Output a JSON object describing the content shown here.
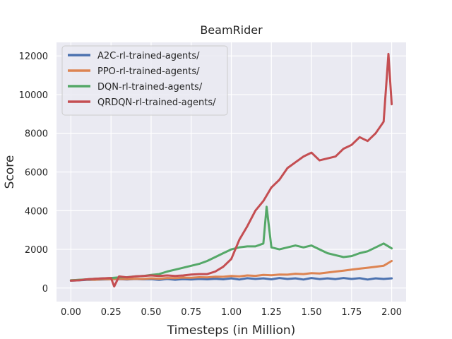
{
  "chart_data": {
    "type": "line",
    "title": "BeamRider",
    "xlabel": "Timesteps (in Million)",
    "ylabel": "Score",
    "xlim": [
      -0.09,
      2.09
    ],
    "ylim": [
      -700,
      12700
    ],
    "xticks": [
      0.0,
      0.25,
      0.5,
      0.75,
      1.0,
      1.25,
      1.5,
      1.75,
      2.0
    ],
    "xtick_labels": [
      "0.00",
      "0.25",
      "0.50",
      "0.75",
      "1.00",
      "1.25",
      "1.50",
      "1.75",
      "2.00"
    ],
    "yticks": [
      0,
      2000,
      4000,
      6000,
      8000,
      10000,
      12000
    ],
    "ytick_labels": [
      "0",
      "2000",
      "4000",
      "6000",
      "8000",
      "10000",
      "12000"
    ],
    "grid": true,
    "background": "#eaeaf2",
    "legend_position": "top-left",
    "series": [
      {
        "name": "A2C-rl-trained-agents/",
        "color": "#4c72b0",
        "points": [
          [
            0.0,
            380
          ],
          [
            0.05,
            400
          ],
          [
            0.1,
            420
          ],
          [
            0.15,
            430
          ],
          [
            0.2,
            440
          ],
          [
            0.25,
            450
          ],
          [
            0.3,
            460
          ],
          [
            0.35,
            440
          ],
          [
            0.4,
            470
          ],
          [
            0.45,
            450
          ],
          [
            0.5,
            460
          ],
          [
            0.55,
            420
          ],
          [
            0.6,
            470
          ],
          [
            0.65,
            430
          ],
          [
            0.7,
            460
          ],
          [
            0.75,
            440
          ],
          [
            0.8,
            470
          ],
          [
            0.85,
            450
          ],
          [
            0.9,
            480
          ],
          [
            0.95,
            450
          ],
          [
            1.0,
            500
          ],
          [
            1.05,
            440
          ],
          [
            1.1,
            510
          ],
          [
            1.15,
            470
          ],
          [
            1.2,
            500
          ],
          [
            1.25,
            450
          ],
          [
            1.3,
            520
          ],
          [
            1.35,
            470
          ],
          [
            1.4,
            500
          ],
          [
            1.45,
            440
          ],
          [
            1.5,
            520
          ],
          [
            1.55,
            460
          ],
          [
            1.6,
            500
          ],
          [
            1.65,
            460
          ],
          [
            1.7,
            520
          ],
          [
            1.75,
            470
          ],
          [
            1.8,
            510
          ],
          [
            1.85,
            440
          ],
          [
            1.9,
            500
          ],
          [
            1.95,
            470
          ],
          [
            2.0,
            500
          ]
        ]
      },
      {
        "name": "PPO-rl-trained-agents/",
        "color": "#dd8452",
        "points": [
          [
            0.0,
            400
          ],
          [
            0.05,
            420
          ],
          [
            0.1,
            440
          ],
          [
            0.15,
            430
          ],
          [
            0.2,
            460
          ],
          [
            0.25,
            450
          ],
          [
            0.3,
            470
          ],
          [
            0.35,
            460
          ],
          [
            0.4,
            480
          ],
          [
            0.45,
            470
          ],
          [
            0.5,
            500
          ],
          [
            0.55,
            480
          ],
          [
            0.6,
            520
          ],
          [
            0.65,
            510
          ],
          [
            0.7,
            540
          ],
          [
            0.75,
            530
          ],
          [
            0.8,
            560
          ],
          [
            0.85,
            550
          ],
          [
            0.9,
            590
          ],
          [
            0.95,
            580
          ],
          [
            1.0,
            620
          ],
          [
            1.05,
            600
          ],
          [
            1.1,
            650
          ],
          [
            1.15,
            630
          ],
          [
            1.2,
            680
          ],
          [
            1.25,
            660
          ],
          [
            1.3,
            700
          ],
          [
            1.35,
            690
          ],
          [
            1.4,
            740
          ],
          [
            1.45,
            720
          ],
          [
            1.5,
            770
          ],
          [
            1.55,
            750
          ],
          [
            1.6,
            800
          ],
          [
            1.65,
            850
          ],
          [
            1.7,
            900
          ],
          [
            1.75,
            950
          ],
          [
            1.8,
            1000
          ],
          [
            1.85,
            1050
          ],
          [
            1.9,
            1100
          ],
          [
            1.95,
            1150
          ],
          [
            2.0,
            1400
          ]
        ]
      },
      {
        "name": "DQN-rl-trained-agents/",
        "color": "#55a868",
        "points": [
          [
            0.0,
            400
          ],
          [
            0.05,
            420
          ],
          [
            0.1,
            450
          ],
          [
            0.15,
            480
          ],
          [
            0.2,
            500
          ],
          [
            0.25,
            520
          ],
          [
            0.3,
            550
          ],
          [
            0.35,
            560
          ],
          [
            0.4,
            600
          ],
          [
            0.45,
            620
          ],
          [
            0.5,
            680
          ],
          [
            0.55,
            720
          ],
          [
            0.6,
            850
          ],
          [
            0.65,
            950
          ],
          [
            0.7,
            1050
          ],
          [
            0.75,
            1150
          ],
          [
            0.8,
            1250
          ],
          [
            0.85,
            1400
          ],
          [
            0.9,
            1600
          ],
          [
            0.95,
            1800
          ],
          [
            1.0,
            2000
          ],
          [
            1.05,
            2100
          ],
          [
            1.1,
            2150
          ],
          [
            1.15,
            2150
          ],
          [
            1.2,
            2300
          ],
          [
            1.22,
            4200
          ],
          [
            1.25,
            2100
          ],
          [
            1.3,
            2000
          ],
          [
            1.35,
            2100
          ],
          [
            1.4,
            2200
          ],
          [
            1.45,
            2100
          ],
          [
            1.5,
            2200
          ],
          [
            1.55,
            2000
          ],
          [
            1.6,
            1800
          ],
          [
            1.65,
            1700
          ],
          [
            1.7,
            1600
          ],
          [
            1.75,
            1650
          ],
          [
            1.8,
            1800
          ],
          [
            1.85,
            1900
          ],
          [
            1.9,
            2100
          ],
          [
            1.95,
            2300
          ],
          [
            2.0,
            2050
          ]
        ]
      },
      {
        "name": "QRDQN-rl-trained-agents/",
        "color": "#c44e52",
        "points": [
          [
            0.0,
            380
          ],
          [
            0.05,
            400
          ],
          [
            0.1,
            450
          ],
          [
            0.15,
            480
          ],
          [
            0.2,
            500
          ],
          [
            0.25,
            520
          ],
          [
            0.27,
            80
          ],
          [
            0.3,
            600
          ],
          [
            0.35,
            550
          ],
          [
            0.4,
            600
          ],
          [
            0.45,
            620
          ],
          [
            0.5,
            650
          ],
          [
            0.55,
            620
          ],
          [
            0.6,
            650
          ],
          [
            0.65,
            620
          ],
          [
            0.7,
            650
          ],
          [
            0.75,
            700
          ],
          [
            0.8,
            720
          ],
          [
            0.85,
            720
          ],
          [
            0.9,
            850
          ],
          [
            0.95,
            1100
          ],
          [
            1.0,
            1500
          ],
          [
            1.05,
            2500
          ],
          [
            1.1,
            3200
          ],
          [
            1.15,
            4000
          ],
          [
            1.2,
            4500
          ],
          [
            1.25,
            5200
          ],
          [
            1.3,
            5600
          ],
          [
            1.35,
            6200
          ],
          [
            1.4,
            6500
          ],
          [
            1.45,
            6800
          ],
          [
            1.5,
            7000
          ],
          [
            1.55,
            6600
          ],
          [
            1.6,
            6700
          ],
          [
            1.65,
            6800
          ],
          [
            1.7,
            7200
          ],
          [
            1.75,
            7400
          ],
          [
            1.8,
            7800
          ],
          [
            1.85,
            7600
          ],
          [
            1.9,
            8000
          ],
          [
            1.95,
            8600
          ],
          [
            1.98,
            12100
          ],
          [
            2.0,
            9500
          ]
        ]
      }
    ]
  }
}
